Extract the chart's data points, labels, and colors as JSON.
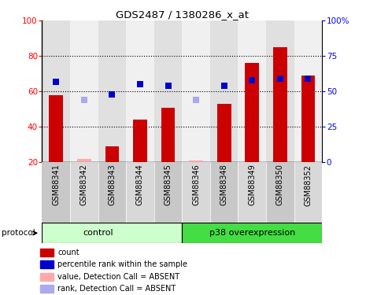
{
  "title": "GDS2487 / 1380286_x_at",
  "samples": [
    "GSM88341",
    "GSM88342",
    "GSM88343",
    "GSM88344",
    "GSM88345",
    "GSM88346",
    "GSM88348",
    "GSM88349",
    "GSM88350",
    "GSM88352"
  ],
  "count_values": [
    58,
    22,
    29,
    44,
    51,
    21,
    53,
    76,
    85,
    69
  ],
  "count_absent": [
    false,
    true,
    false,
    false,
    false,
    true,
    false,
    false,
    false,
    false
  ],
  "rank_values": [
    57,
    44,
    48,
    55,
    54,
    44,
    54,
    58,
    59,
    59
  ],
  "rank_absent": [
    false,
    true,
    false,
    false,
    false,
    true,
    false,
    false,
    false,
    false
  ],
  "ylim_left": [
    20,
    100
  ],
  "ylim_right": [
    0,
    100
  ],
  "yticks_left": [
    20,
    40,
    60,
    80,
    100
  ],
  "yticks_right": [
    0,
    25,
    50,
    75,
    100
  ],
  "ytick_labels_right": [
    "0",
    "25",
    "50",
    "75",
    "100%"
  ],
  "bar_color_present": "#cc0000",
  "bar_color_absent": "#ffaaaa",
  "rank_color_present": "#0000cc",
  "rank_color_absent": "#aaaaee",
  "plot_bg": "#ffffff",
  "col_bg_even": "#e0e0e0",
  "col_bg_odd": "#f0f0f0",
  "label_area_bg": "#d0d0d0",
  "control_bg": "#ccffcc",
  "p38_bg": "#44dd44",
  "legend_labels": [
    "count",
    "percentile rank within the sample",
    "value, Detection Call = ABSENT",
    "rank, Detection Call = ABSENT"
  ],
  "legend_colors": [
    "#cc0000",
    "#0000cc",
    "#ffaaaa",
    "#aaaaee"
  ]
}
